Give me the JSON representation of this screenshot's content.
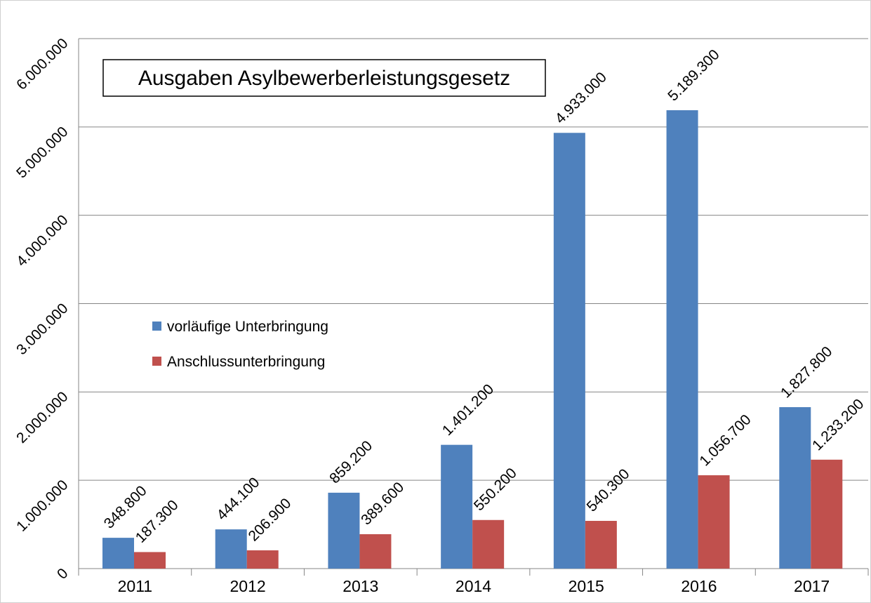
{
  "chart_data": {
    "type": "bar",
    "title": "Ausgaben Asylbewerberleistungsgesetz",
    "categories": [
      "2011",
      "2012",
      "2013",
      "2014",
      "2015",
      "2016",
      "2017"
    ],
    "series": [
      {
        "name": "vorläufige Unterbringung",
        "color": "#4f81bd",
        "values": [
          348800,
          444100,
          859200,
          1401200,
          4933000,
          5189300,
          1827800
        ],
        "value_labels": [
          "348.800",
          "444.100",
          "859.200",
          "1.401.200",
          "4.933.000",
          "5.189.300",
          "1.827.800"
        ]
      },
      {
        "name": "Anschlussunterbringung",
        "color": "#c0504d",
        "values": [
          187300,
          206900,
          389600,
          550200,
          540300,
          1056700,
          1233200
        ],
        "value_labels": [
          "187.300",
          "206.900",
          "389.600",
          "550.200",
          "540.300",
          "1.056.700",
          "1.233.200"
        ]
      }
    ],
    "ylim": [
      0,
      6000000
    ],
    "yticks": [
      0,
      {
        "value": 1000000,
        "label": "1.000.000"
      },
      {
        "value": 2000000,
        "label": "2.000.000"
      },
      {
        "value": 3000000,
        "label": "3.000.000"
      },
      {
        "value": 4000000,
        "label": "4.000.000"
      },
      {
        "value": 5000000,
        "label": "5.000.000"
      },
      {
        "value": 6000000,
        "label": "6.000.000"
      }
    ],
    "grid": true,
    "legend": "left"
  }
}
